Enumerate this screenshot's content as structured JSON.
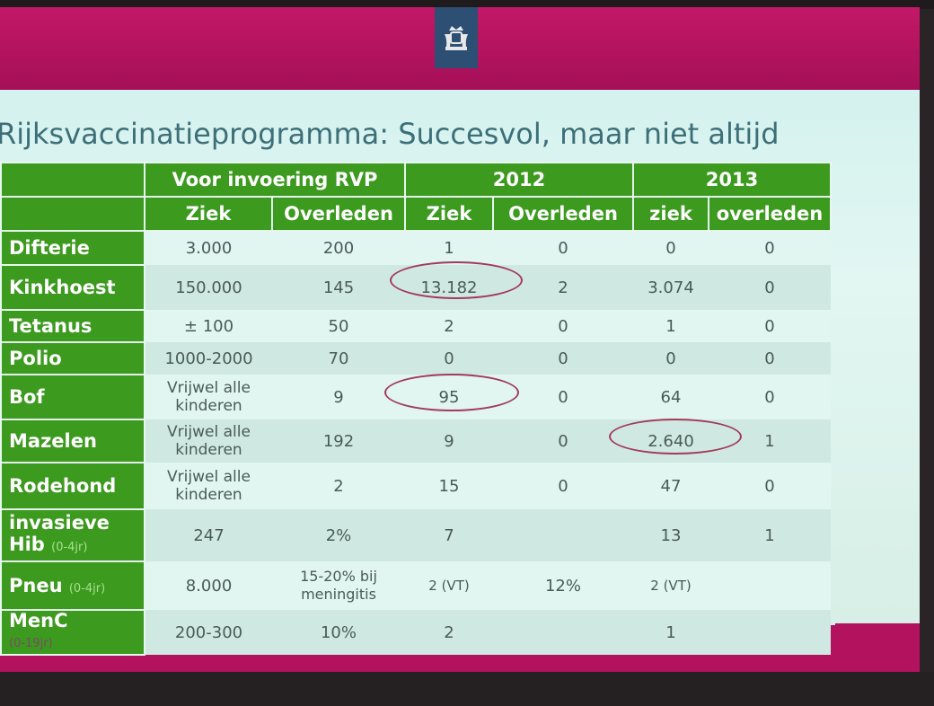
{
  "slide": {
    "title": "Rijksvaccinatieprogramma: Succesvol, maar niet altijd",
    "logo_icon": "crown-coat-of-arms-icon"
  },
  "colors": {
    "header_green": "#3c9a1f",
    "slide_mauve": "#b3125f",
    "circle_red": "#a23a5a"
  },
  "table": {
    "group_headers": [
      "Voor invoering RVP",
      "2012",
      "2013"
    ],
    "sub_headers": [
      "Ziek",
      "Overleden",
      "Ziek",
      "Overleden",
      "ziek",
      "overleden"
    ],
    "rows": [
      {
        "label": "Difterie",
        "note": "",
        "values": [
          "3.000",
          "200",
          "1",
          "0",
          "0",
          "0"
        ]
      },
      {
        "label": "Kinkhoest",
        "note": "",
        "values": [
          "150.000",
          "145",
          "13.182",
          "2",
          "3.074",
          "0"
        ]
      },
      {
        "label": "Tetanus",
        "note": "",
        "values": [
          "± 100",
          "50",
          "2",
          "0",
          "1",
          "0"
        ]
      },
      {
        "label": "Polio",
        "note": "",
        "values": [
          "1000-2000",
          "70",
          "0",
          "0",
          "0",
          "0"
        ]
      },
      {
        "label": "Bof",
        "note": "",
        "values": [
          "Vrijwel alle kinderen",
          "9",
          "95",
          "0",
          "64",
          "0"
        ]
      },
      {
        "label": "Mazelen",
        "note": "",
        "values": [
          "Vrijwel alle kinderen",
          "192",
          "9",
          "0",
          "2.640",
          "1"
        ]
      },
      {
        "label": "Rodehond",
        "note": "",
        "values": [
          "Vrijwel alle kinderen",
          "2",
          "15",
          "0",
          "47",
          "0"
        ]
      },
      {
        "label": "invasieve Hib",
        "note": "(0-4jr)",
        "values": [
          "247",
          "2%",
          "7",
          "",
          "13",
          "1"
        ]
      },
      {
        "label": "Pneu",
        "note": "(0-4jr)",
        "values": [
          "8.000",
          "15-20% bij meningitis",
          "2 (VT)",
          "12%",
          "2 (VT)",
          ""
        ]
      },
      {
        "label": "MenC",
        "note": "(0-19jr)",
        "values": [
          "200-300",
          "10%",
          "2",
          "",
          "1",
          ""
        ]
      }
    ]
  }
}
